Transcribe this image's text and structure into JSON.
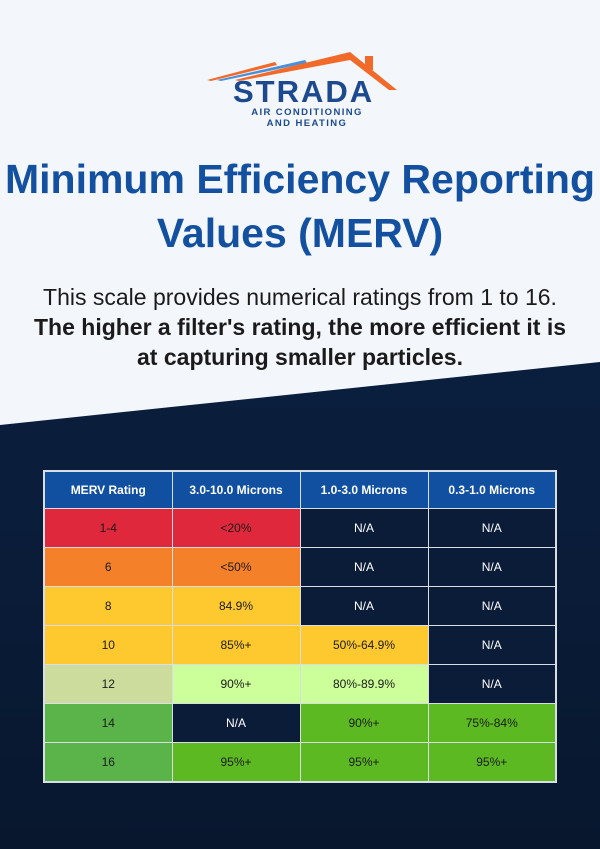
{
  "brand": {
    "name": "STRADA",
    "tagline_line1": "AIR CONDITIONING",
    "tagline_line2": "AND HEATING",
    "colors": {
      "blue": "#1d4a8f",
      "orange": "#f26a2a",
      "light_blue": "#4a90d9"
    }
  },
  "title": "Minimum Efficiency Reporting Values (MERV)",
  "description": {
    "plain": "This scale provides numerical ratings from 1 to 16.",
    "bold": "The higher a filter's rating, the more efficient it is at capturing smaller particles."
  },
  "table": {
    "headers": [
      "MERV Rating",
      "3.0-10.0 Microns",
      "1.0-3.0 Microns",
      "0.3-1.0 Microns"
    ],
    "rows": [
      {
        "cells": [
          "1-4",
          "<20%",
          "N/A",
          "N/A"
        ],
        "colors": [
          "red",
          "red",
          "na",
          "na"
        ]
      },
      {
        "cells": [
          "6",
          "<50%",
          "N/A",
          "N/A"
        ],
        "colors": [
          "org",
          "org",
          "na",
          "na"
        ]
      },
      {
        "cells": [
          "8",
          "84.9%",
          "N/A",
          "N/A"
        ],
        "colors": [
          "yel",
          "yel",
          "na",
          "na"
        ]
      },
      {
        "cells": [
          "10",
          "85%+",
          "50%-64.9%",
          "N/A"
        ],
        "colors": [
          "yel",
          "yel",
          "yel",
          "na"
        ]
      },
      {
        "cells": [
          "12",
          "90%+",
          "80%-89.9%",
          "N/A"
        ],
        "colors": [
          "pale",
          "lg",
          "lg",
          "na"
        ]
      },
      {
        "cells": [
          "14",
          "N/A",
          "90%+",
          "75%-84%"
        ],
        "colors": [
          "g1",
          "na",
          "g2",
          "g2"
        ]
      },
      {
        "cells": [
          "16",
          "95%+",
          "95%+",
          "95%+"
        ],
        "colors": [
          "g1",
          "g2",
          "g2",
          "g2"
        ]
      }
    ]
  }
}
